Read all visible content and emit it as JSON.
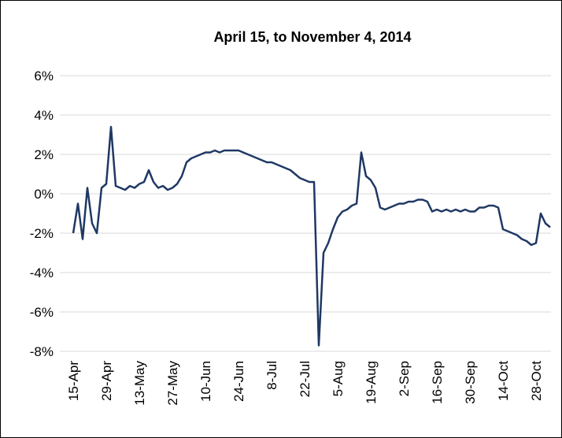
{
  "chart_data": {
    "type": "line",
    "title": "April 15, to November 4, 2014",
    "categories": [
      "15-Apr",
      null,
      null,
      null,
      null,
      null,
      null,
      "29-Apr",
      null,
      null,
      null,
      null,
      null,
      null,
      "13-May",
      null,
      null,
      null,
      null,
      null,
      null,
      "27-May",
      null,
      null,
      null,
      null,
      null,
      null,
      "10-Jun",
      null,
      null,
      null,
      null,
      null,
      null,
      "24-Jun",
      null,
      null,
      null,
      null,
      null,
      null,
      "8-Jul",
      null,
      null,
      null,
      null,
      null,
      null,
      "22-Jul",
      null,
      null,
      null,
      null,
      null,
      null,
      "5-Aug",
      null,
      null,
      null,
      null,
      null,
      null,
      "19-Aug",
      null,
      null,
      null,
      null,
      null,
      null,
      "2-Sep",
      null,
      null,
      null,
      null,
      null,
      null,
      "16-Sep",
      null,
      null,
      null,
      null,
      null,
      null,
      "30-Sep",
      null,
      null,
      null,
      null,
      null,
      null,
      "14-Oct",
      null,
      null,
      null,
      null,
      null,
      null,
      "28-Oct",
      null,
      null,
      null
    ],
    "series": [
      {
        "color": "#1f3864",
        "values": [
          -2,
          -0.5,
          -2.3,
          0.3,
          -1.5,
          -2,
          0.3,
          0.5,
          3.4,
          0.4,
          0.3,
          0.2,
          0.4,
          0.3,
          0.5,
          0.6,
          1.2,
          0.6,
          0.3,
          0.4,
          0.2,
          0.3,
          0.5,
          0.9,
          1.6,
          1.8,
          1.9,
          2.0,
          2.1,
          2.1,
          2.2,
          2.1,
          2.2,
          2.2,
          2.2,
          2.2,
          2.1,
          2.0,
          1.9,
          1.8,
          1.7,
          1.6,
          1.6,
          1.5,
          1.4,
          1.3,
          1.2,
          1.0,
          0.8,
          0.7,
          0.6,
          0.6,
          -7.7,
          -3,
          -2.5,
          -1.8,
          -1.2,
          -0.9,
          -0.8,
          -0.6,
          -0.5,
          2.1,
          0.9,
          0.7,
          0.3,
          -0.7,
          -0.8,
          -0.7,
          -0.6,
          -0.5,
          -0.5,
          -0.4,
          -0.4,
          -0.3,
          -0.3,
          -0.4,
          -0.9,
          -0.8,
          -0.9,
          -0.8,
          -0.9,
          -0.8,
          -0.9,
          -0.8,
          -0.9,
          -0.9,
          -0.7,
          -0.7,
          -0.6,
          -0.6,
          -0.7,
          -1.8,
          -1.9,
          -2.0,
          -2.1,
          -2.3,
          -2.4,
          -2.6,
          -2.5,
          -1.0,
          -1.5,
          -1.7
        ]
      }
    ],
    "ylim": [
      -8,
      6
    ],
    "yticks": [
      {
        "value": -8,
        "label": "-8%"
      },
      {
        "value": -6,
        "label": "-6%"
      },
      {
        "value": -4,
        "label": "-4%"
      },
      {
        "value": -2,
        "label": "-2%"
      },
      {
        "value": 0,
        "label": "0%"
      },
      {
        "value": 2,
        "label": "2%"
      },
      {
        "value": 4,
        "label": "4%"
      },
      {
        "value": 6,
        "label": "6%"
      }
    ],
    "grid": true
  }
}
